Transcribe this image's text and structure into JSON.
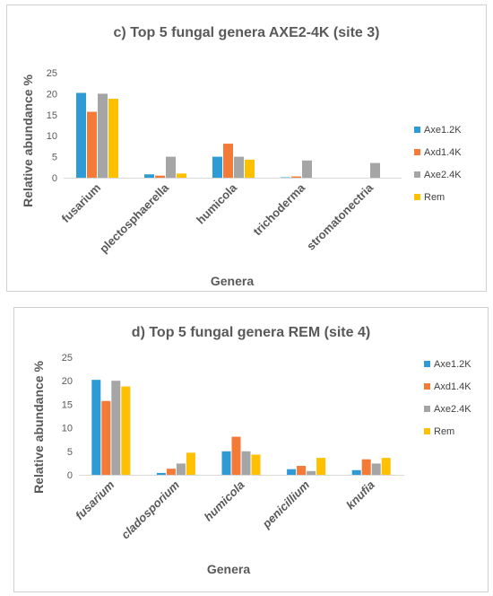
{
  "chart_data": [
    {
      "type": "bar",
      "title": "c) Top 5 fungal genera AXE2-4K (site 3)",
      "xlabel": "Genera",
      "ylabel": "Relative abundance %",
      "ylim": [
        0,
        25
      ],
      "yticks": [
        0,
        5,
        10,
        15,
        20,
        25
      ],
      "categories": [
        "fusarium",
        "plectosphaerella",
        "humicola",
        "trichoderma",
        "stromatonectria"
      ],
      "category_italic": false,
      "legend_position": "right",
      "grid": false,
      "series": [
        {
          "name": "Axe1.2K",
          "color": "#2e9bd6",
          "values": [
            20.2,
            0.8,
            5.0,
            0.1,
            0.0
          ]
        },
        {
          "name": "Axd1.4K",
          "color": "#f47a38",
          "values": [
            15.7,
            0.5,
            8.1,
            0.3,
            0.0
          ]
        },
        {
          "name": "Axe2.4K",
          "color": "#a5a5a5",
          "values": [
            20.0,
            5.0,
            5.0,
            4.1,
            3.5
          ]
        },
        {
          "name": "Rem",
          "color": "#ffc000",
          "values": [
            18.8,
            1.0,
            4.3,
            0.0,
            0.0
          ]
        }
      ]
    },
    {
      "type": "bar",
      "title": "d) Top 5 fungal genera REM (site 4)",
      "xlabel": "Genera",
      "ylabel": "Relative abundance %",
      "ylim": [
        0,
        25
      ],
      "yticks": [
        0,
        5,
        10,
        15,
        20,
        25
      ],
      "categories": [
        "fusarium",
        "cladosporium",
        "humicola",
        "penicillium",
        "knufia"
      ],
      "category_italic": true,
      "legend_position": "right",
      "grid": false,
      "series": [
        {
          "name": "Axe1.2K",
          "color": "#2e9bd6",
          "values": [
            20.2,
            0.4,
            5.0,
            1.2,
            1.0
          ]
        },
        {
          "name": "Axd1.4K",
          "color": "#f47a38",
          "values": [
            15.7,
            1.3,
            8.1,
            1.9,
            3.3
          ]
        },
        {
          "name": "Axe2.4K",
          "color": "#a5a5a5",
          "values": [
            20.0,
            2.4,
            5.0,
            0.8,
            2.4
          ]
        },
        {
          "name": "Rem",
          "color": "#ffc000",
          "values": [
            18.8,
            4.7,
            4.3,
            3.6,
            3.6
          ]
        }
      ]
    }
  ]
}
